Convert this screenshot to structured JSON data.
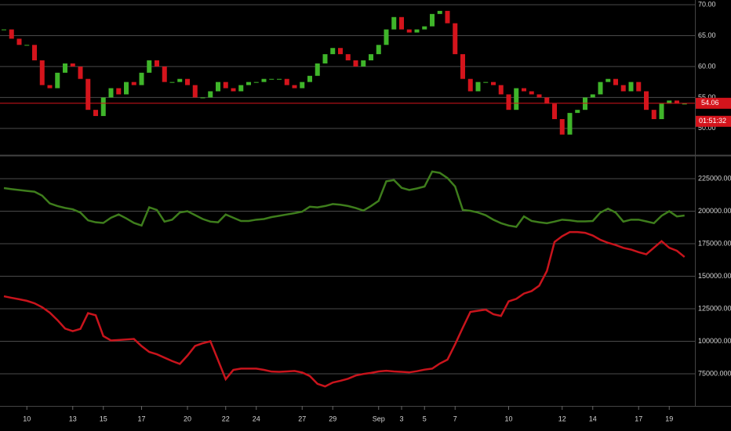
{
  "chart_data": [
    {
      "type": "candlestick",
      "up_color": "#3fb52a",
      "down_color": "#d4141c",
      "values": [
        66,
        64.5,
        63.5,
        63.5,
        61,
        57,
        56.5,
        59,
        60.5,
        60,
        58,
        53,
        52,
        55,
        56.5,
        55.5,
        57.5,
        57,
        59,
        61,
        60,
        57.5,
        57.5,
        58,
        57,
        55,
        55,
        56,
        57.5,
        56.5,
        56,
        57,
        57.5,
        57.5,
        58,
        58,
        58,
        57,
        56.5,
        57.5,
        58.5,
        60.5,
        62,
        63,
        62,
        61,
        60,
        61,
        62,
        63.5,
        66,
        68,
        66,
        65.5,
        66,
        66.5,
        68.5,
        69,
        67,
        62,
        58,
        56,
        57.5,
        57.5,
        57,
        55.5,
        53,
        56.5,
        56,
        55.5,
        55,
        54,
        51.5,
        49,
        52.5,
        53,
        55,
        55.5,
        57.5,
        58,
        57,
        56,
        57.5,
        56,
        53,
        51.5,
        54,
        54.5,
        54,
        54
      ],
      "last_price": 54.06,
      "last_price_color": "#d4141c",
      "countdown": "01:51:32",
      "ylim": [
        45.8,
        70.76
      ],
      "yticks": [
        {
          "value": 50,
          "label": "50.00"
        },
        {
          "value": 55,
          "label": "55.00"
        },
        {
          "value": 60,
          "label": "60.00"
        },
        {
          "value": 65,
          "label": "65.00"
        },
        {
          "value": 70,
          "label": "70.00"
        }
      ],
      "grid": true
    },
    {
      "type": "line",
      "categories": [
        null,
        null,
        null,
        "10",
        null,
        null,
        null,
        null,
        null,
        "13",
        null,
        null,
        null,
        "15",
        null,
        null,
        null,
        null,
        "17",
        null,
        null,
        null,
        null,
        null,
        "20",
        null,
        null,
        null,
        null,
        "22",
        null,
        null,
        null,
        "24",
        null,
        null,
        null,
        null,
        null,
        "27",
        null,
        null,
        null,
        "29",
        null,
        null,
        null,
        null,
        null,
        "Sep",
        null,
        null,
        "3",
        null,
        null,
        "5",
        null,
        null,
        null,
        "7",
        null,
        null,
        null,
        null,
        null,
        null,
        "10",
        null,
        null,
        null,
        null,
        null,
        null,
        "12",
        null,
        null,
        null,
        "14",
        null,
        null,
        null,
        null,
        null,
        "17",
        null,
        null,
        null,
        "19",
        null,
        null
      ],
      "series": [
        {
          "color": "#3e7d1c",
          "values": [
            217800,
            217000,
            216300,
            215600,
            215000,
            212000,
            206000,
            204000,
            202500,
            201500,
            199000,
            193000,
            191500,
            191000,
            195000,
            197500,
            194500,
            191000,
            189000,
            203000,
            201000,
            192000,
            193500,
            199000,
            200000,
            197000,
            194000,
            192000,
            191500,
            197500,
            195000,
            192500,
            192500,
            193500,
            194000,
            195500,
            196500,
            197500,
            198500,
            199700,
            203500,
            203000,
            204000,
            205500,
            205000,
            204000,
            202500,
            200500,
            204000,
            208000,
            223000,
            224000,
            218000,
            216300,
            217500,
            219000,
            230500,
            229500,
            225500,
            219000,
            201000,
            200300,
            199000,
            196900,
            193500,
            190800,
            189000,
            188000,
            196000,
            192500,
            191500,
            190800,
            192000,
            193500,
            193000,
            192200,
            192200,
            192500,
            199000,
            202000,
            199000,
            192000,
            193500,
            193500,
            192200,
            190800,
            196500,
            200000,
            196000,
            196700
          ]
        },
        {
          "color": "#c8141c",
          "values": [
            134600,
            133400,
            132300,
            131100,
            129200,
            126200,
            122000,
            116300,
            109800,
            107800,
            109500,
            121600,
            120000,
            104000,
            100600,
            101000,
            101400,
            101800,
            96300,
            91800,
            90000,
            87400,
            84800,
            82600,
            89000,
            96400,
            98500,
            100000,
            85500,
            70800,
            78000,
            79000,
            79000,
            79000,
            78000,
            76700,
            76500,
            76800,
            77200,
            76000,
            73300,
            67300,
            65300,
            68300,
            69600,
            71200,
            73700,
            74900,
            75700,
            76800,
            77300,
            76800,
            76500,
            76100,
            77000,
            78200,
            79000,
            82900,
            85900,
            97700,
            110400,
            122600,
            123500,
            124300,
            120800,
            119500,
            130700,
            132600,
            136700,
            138600,
            142800,
            154000,
            176400,
            180800,
            184000,
            184000,
            183400,
            181300,
            178000,
            175700,
            174000,
            171800,
            170500,
            168500,
            166900,
            172000,
            177000,
            171900,
            169600,
            164800
          ]
        }
      ],
      "ylim": [
        50300,
        241900
      ],
      "yticks": [
        {
          "value": 75000,
          "label": "75000.0000"
        },
        {
          "value": 100000,
          "label": "100000.0000"
        },
        {
          "value": 125000,
          "label": "125000.0000"
        },
        {
          "value": 150000,
          "label": "150000.0000"
        },
        {
          "value": 175000,
          "label": "175000.0000"
        },
        {
          "value": 200000,
          "label": "200000.0000"
        },
        {
          "value": 225000,
          "label": "225000.0000"
        }
      ],
      "grid": true
    }
  ]
}
